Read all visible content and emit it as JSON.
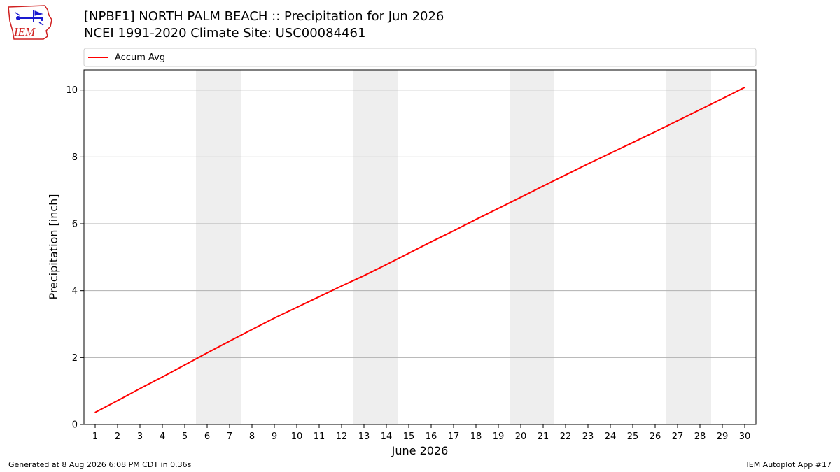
{
  "header": {
    "title_line1": "[NPBF1] NORTH PALM BEACH :: Precipitation for Jun 2026",
    "title_line2": "NCEI 1991-2020 Climate Site: USC00084461",
    "logo_text": "IEM"
  },
  "footer": {
    "generated": "Generated at 8 Aug 2026 6:08 PM CDT in 0.36s",
    "app": "IEM Autoplot App #17"
  },
  "colors": {
    "line": "#ff0000",
    "weekend_shade": "#eeeeee",
    "grid": "#b0b0b0",
    "logo_red": "#d02020",
    "logo_blue": "#1a1ad0"
  },
  "chart_data": {
    "type": "line",
    "xlabel": "June 2026",
    "ylabel": "Precipitation [inch]",
    "xlim": [
      0.5,
      30.5
    ],
    "ylim": [
      0,
      10.6
    ],
    "grid": "horizontal",
    "legend_placement": "top, above plot",
    "x": [
      1,
      2,
      3,
      4,
      5,
      6,
      7,
      8,
      9,
      10,
      11,
      12,
      13,
      14,
      15,
      16,
      17,
      18,
      19,
      20,
      21,
      22,
      23,
      24,
      25,
      26,
      27,
      28,
      29,
      30
    ],
    "x_ticks": [
      1,
      2,
      3,
      4,
      5,
      6,
      7,
      8,
      9,
      10,
      11,
      12,
      13,
      14,
      15,
      16,
      17,
      18,
      19,
      20,
      21,
      22,
      23,
      24,
      25,
      26,
      27,
      28,
      29,
      30
    ],
    "y_ticks": [
      0,
      2,
      4,
      6,
      8,
      10
    ],
    "shaded_x_ranges": [
      [
        5.5,
        7.5
      ],
      [
        12.5,
        14.5
      ],
      [
        19.5,
        21.5
      ],
      [
        26.5,
        28.5
      ]
    ],
    "series": [
      {
        "name": "Accum Avg",
        "color": "#ff0000",
        "values": [
          0.36,
          0.71,
          1.07,
          1.42,
          1.78,
          2.14,
          2.49,
          2.84,
          3.18,
          3.5,
          3.82,
          4.14,
          4.45,
          4.78,
          5.12,
          5.46,
          5.79,
          6.13,
          6.46,
          6.79,
          7.13,
          7.46,
          7.79,
          8.11,
          8.43,
          8.75,
          9.08,
          9.41,
          9.74,
          10.08
        ]
      }
    ]
  }
}
